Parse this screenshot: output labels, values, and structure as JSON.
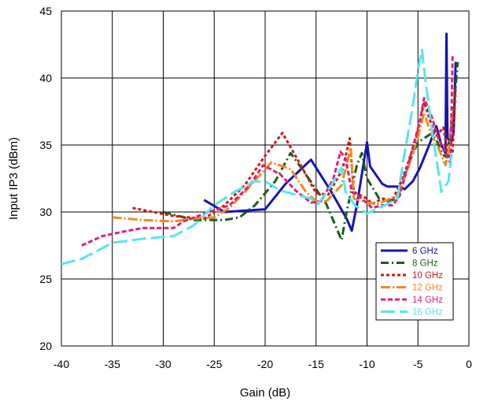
{
  "chart_data": {
    "type": "line",
    "title": "",
    "xlabel": "Gain (dB)",
    "ylabel": "Input IP3 (dBm)",
    "xlim": [
      -40,
      0
    ],
    "ylim": [
      20,
      45
    ],
    "x_ticks": [
      -40,
      -35,
      -30,
      -25,
      -20,
      -15,
      -10,
      -5,
      0
    ],
    "x_tick_labels": [
      "-40",
      "-35",
      "-30",
      "-25",
      "-20",
      "-15",
      "-10",
      "-5",
      "0"
    ],
    "y_ticks": [
      20,
      25,
      30,
      35,
      40,
      45
    ],
    "y_tick_labels": [
      "20",
      "25",
      "30",
      "35",
      "40",
      "45"
    ],
    "grid": true,
    "legend_position": "lower-right",
    "series": [
      {
        "name": "6 GHz",
        "color": "#1515b5",
        "dash": "solid",
        "points": [
          [
            -26,
            30.9
          ],
          [
            -24,
            30.0
          ],
          [
            -22,
            30.1
          ],
          [
            -20,
            30.2
          ],
          [
            -18,
            32.1
          ],
          [
            -15.5,
            33.9
          ],
          [
            -13.5,
            31.5
          ],
          [
            -12,
            29.5
          ],
          [
            -11.5,
            28.6
          ],
          [
            -11,
            30.5
          ],
          [
            -10,
            35.2
          ],
          [
            -9.7,
            33.4
          ],
          [
            -8.5,
            32.1
          ],
          [
            -8,
            31.9
          ],
          [
            -6.8,
            31.9
          ],
          [
            -6.3,
            31.7
          ],
          [
            -5.5,
            32.3
          ],
          [
            -4.8,
            33.3
          ],
          [
            -4,
            34.8
          ],
          [
            -3.2,
            36.4
          ],
          [
            -2.7,
            35.0
          ],
          [
            -2.3,
            34.4
          ],
          [
            -2.2,
            43.3
          ],
          [
            -2.1,
            35.6
          ],
          [
            -1.8,
            35.0
          ],
          [
            -1.5,
            36.0
          ],
          [
            -1.3,
            41.2
          ]
        ]
      },
      {
        "name": "8 GHz",
        "color": "#1a5e1a",
        "dash": "10,4,2,4",
        "points": [
          [
            -30,
            30.0
          ],
          [
            -27,
            29.4
          ],
          [
            -24,
            29.4
          ],
          [
            -22.5,
            29.6
          ],
          [
            -21,
            30.5
          ],
          [
            -19,
            32.3
          ],
          [
            -17.5,
            34.4
          ],
          [
            -16,
            32.8
          ],
          [
            -14,
            30.6
          ],
          [
            -13,
            28.8
          ],
          [
            -12.5,
            27.9
          ],
          [
            -12,
            30.0
          ],
          [
            -11,
            33.5
          ],
          [
            -10.5,
            34.4
          ],
          [
            -10,
            32.5
          ],
          [
            -8.8,
            31.0
          ],
          [
            -8,
            30.8
          ],
          [
            -7,
            31.0
          ],
          [
            -6,
            33.5
          ],
          [
            -5,
            35.2
          ],
          [
            -3.8,
            35.8
          ],
          [
            -3.2,
            35.4
          ],
          [
            -2.6,
            34.3
          ],
          [
            -2.2,
            34.1
          ],
          [
            -1.5,
            37.5
          ],
          [
            -1.1,
            41.2
          ]
        ]
      },
      {
        "name": "10 GHz",
        "color": "#d01818",
        "dash": "4,3",
        "points": [
          [
            -33,
            30.3
          ],
          [
            -31,
            30.0
          ],
          [
            -29,
            29.7
          ],
          [
            -26,
            29.5
          ],
          [
            -24,
            30.5
          ],
          [
            -22,
            32.0
          ],
          [
            -20,
            34.2
          ],
          [
            -18.3,
            35.9
          ],
          [
            -16.5,
            33.5
          ],
          [
            -15,
            31.4
          ],
          [
            -13.8,
            31.3
          ],
          [
            -12.4,
            33.2
          ],
          [
            -11.7,
            35.5
          ],
          [
            -11.3,
            31.5
          ],
          [
            -10,
            31.0
          ],
          [
            -9.5,
            30.6
          ],
          [
            -8.5,
            31.0
          ],
          [
            -7.5,
            30.9
          ],
          [
            -6.5,
            32.5
          ],
          [
            -5.2,
            35.4
          ],
          [
            -4.4,
            38.2
          ],
          [
            -3.8,
            36.8
          ],
          [
            -3.2,
            35.7
          ],
          [
            -2.5,
            36.3
          ],
          [
            -2.0,
            34.0
          ],
          [
            -1.6,
            34.5
          ],
          [
            -1.3,
            39.4
          ]
        ]
      },
      {
        "name": "12 GHz",
        "color": "#f08a20",
        "dash": "12,3,2,3",
        "points": [
          [
            -35,
            29.6
          ],
          [
            -32,
            29.4
          ],
          [
            -29,
            29.3
          ],
          [
            -27,
            29.5
          ],
          [
            -25,
            29.6
          ],
          [
            -23.5,
            30.3
          ],
          [
            -22,
            31.5
          ],
          [
            -19.4,
            33.7
          ],
          [
            -17.5,
            33.2
          ],
          [
            -16,
            31.5
          ],
          [
            -15,
            30.8
          ],
          [
            -14,
            30.8
          ],
          [
            -12.5,
            32.0
          ],
          [
            -11.6,
            34.8
          ],
          [
            -11.3,
            31.0
          ],
          [
            -10,
            30.7
          ],
          [
            -9,
            30.6
          ],
          [
            -8,
            30.9
          ],
          [
            -7,
            31.2
          ],
          [
            -6,
            33.2
          ],
          [
            -5,
            35.6
          ],
          [
            -4.4,
            37.4
          ],
          [
            -3.8,
            36.0
          ],
          [
            -3.0,
            34.8
          ],
          [
            -2.3,
            33.5
          ],
          [
            -2.0,
            34.5
          ],
          [
            -1.6,
            37.8
          ]
        ]
      },
      {
        "name": "14 GHz",
        "color": "#e0207a",
        "dash": "6,3",
        "points": [
          [
            -38,
            27.5
          ],
          [
            -36,
            28.2
          ],
          [
            -33.5,
            28.6
          ],
          [
            -32,
            28.8
          ],
          [
            -29,
            28.8
          ],
          [
            -28,
            29.3
          ],
          [
            -25.5,
            30.0
          ],
          [
            -23.5,
            30.5
          ],
          [
            -21.5,
            32.0
          ],
          [
            -20.2,
            33.5
          ],
          [
            -18.5,
            32.8
          ],
          [
            -17,
            31.6
          ],
          [
            -15.5,
            30.7
          ],
          [
            -14.5,
            30.8
          ],
          [
            -13.3,
            32.5
          ],
          [
            -12.6,
            34.5
          ],
          [
            -12.1,
            34.0
          ],
          [
            -11.5,
            31.5
          ],
          [
            -10.5,
            31.0
          ],
          [
            -9.5,
            30.3
          ],
          [
            -8.5,
            30.5
          ],
          [
            -7.5,
            30.5
          ],
          [
            -6.8,
            31.2
          ],
          [
            -5.8,
            34.0
          ],
          [
            -4.8,
            36.8
          ],
          [
            -4.4,
            38.5
          ],
          [
            -3.6,
            37.0
          ],
          [
            -3.0,
            35.5
          ],
          [
            -2.3,
            34.5
          ],
          [
            -1.8,
            33.6
          ],
          [
            -1.6,
            41.8
          ]
        ]
      },
      {
        "name": "16 GHz",
        "color": "#55e5ee",
        "dash": "18,6",
        "points": [
          [
            -40,
            26.1
          ],
          [
            -38,
            26.5
          ],
          [
            -35,
            27.7
          ],
          [
            -32,
            28.0
          ],
          [
            -29,
            28.2
          ],
          [
            -27,
            29.0
          ],
          [
            -25,
            30.5
          ],
          [
            -23,
            31.5
          ],
          [
            -21,
            32.3
          ],
          [
            -19.8,
            32.2
          ],
          [
            -18.5,
            31.6
          ],
          [
            -17,
            31.3
          ],
          [
            -15.5,
            31.0
          ],
          [
            -14.8,
            30.6
          ],
          [
            -13.5,
            32.0
          ],
          [
            -12.5,
            33.3
          ],
          [
            -12.1,
            31.5
          ],
          [
            -11.2,
            30.5
          ],
          [
            -10,
            29.9
          ],
          [
            -8.5,
            30.4
          ],
          [
            -7,
            31.0
          ],
          [
            -6.4,
            34.0
          ],
          [
            -5.6,
            37.5
          ],
          [
            -4.9,
            41.0
          ],
          [
            -4.6,
            42.1
          ],
          [
            -4.3,
            40.0
          ],
          [
            -3.6,
            36.0
          ],
          [
            -3.0,
            33.0
          ],
          [
            -2.7,
            31.5
          ],
          [
            -2.0,
            32.3
          ],
          [
            -1.7,
            34.5
          ]
        ]
      }
    ]
  }
}
